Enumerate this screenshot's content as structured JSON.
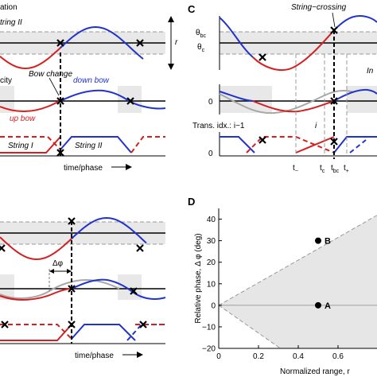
{
  "colors": {
    "blue": "#2233cc",
    "red": "#d42020",
    "gray_line": "#a8a8a8",
    "shade": "#e8e8e8",
    "black": "#000000"
  },
  "panel_a": {
    "title_fragment": "ation",
    "string_label": "tring II",
    "range_label": "r",
    "velocity_fragment": "city",
    "bow_change": "Bow change",
    "down_bow": "down bow",
    "up_bow": "up bow",
    "string_one": "String I",
    "string_two": "String II",
    "xlabel": "time/phase"
  },
  "panel_b": {
    "delta_phi": "Δφ",
    "xlabel": "time/phase"
  },
  "panel_c": {
    "letter": "C",
    "crossing_label": "String−crossing",
    "theta_bc": "θ",
    "theta_bc_sub": "bc",
    "theta_c": "θ",
    "theta_c_sub": "c",
    "inc_fragment": "In",
    "y_zero_mid": "0",
    "trans_idx": "Trans. idx.: i−1",
    "i_label": "i",
    "y_zero_low": "0",
    "t_minus": "t",
    "t_minus_sub": "−",
    "t_c": "t",
    "t_c_sub": "c",
    "t_bc": "t",
    "t_bc_sub": "bc",
    "t_plus": "t",
    "t_plus_sub": "+"
  },
  "panel_d": {
    "letter": "D",
    "point_a": "A",
    "point_b": "B"
  },
  "chart_data": [
    {
      "type": "scatter",
      "panel": "D",
      "xlabel": "Normalized range, r",
      "ylabel": "Relative phase, Δ φ (deg)",
      "xlim": [
        0,
        0.8
      ],
      "ylim": [
        -20,
        45
      ],
      "x_ticks": [
        "0",
        "0.2",
        "0.4",
        "0.6"
      ],
      "y_ticks": [
        "−20",
        "−10",
        "0",
        "10",
        "20",
        "30",
        "40"
      ],
      "points": [
        {
          "name": "A",
          "x": 0.5,
          "y": 0
        },
        {
          "name": "B",
          "x": 0.5,
          "y": 30
        }
      ],
      "boundary_upper": [
        [
          0,
          0
        ],
        [
          0.8,
          42
        ]
      ],
      "boundary_lower": [
        [
          0,
          0
        ],
        [
          0.31,
          -20
        ]
      ]
    }
  ]
}
